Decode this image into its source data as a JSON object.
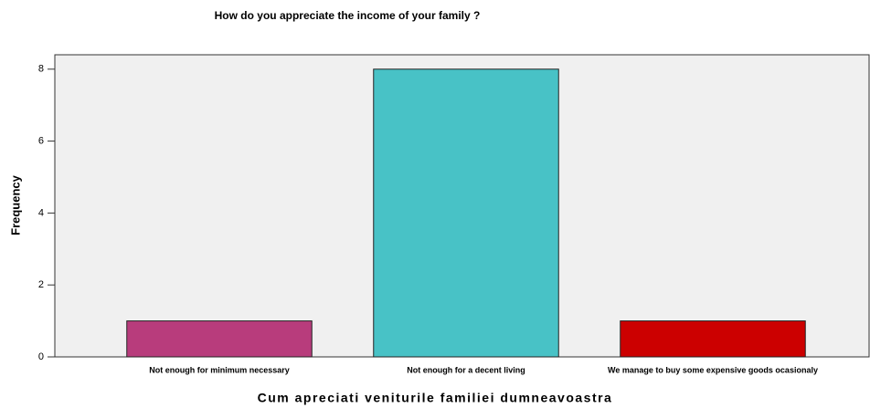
{
  "chart_data": {
    "type": "bar",
    "title": "How do you appreciate the income of your family ?",
    "x_label": "Cum apreciati veniturile familiei dumneavoastra",
    "y_label": "Frequency",
    "categories": [
      "Not enough for minimum necessary",
      "Not enough for a decent living",
      "We manage to buy some expensive goods ocasionaly"
    ],
    "values": [
      1,
      8,
      1
    ],
    "colors": [
      "#b83c7c",
      "#48c2c6",
      "#cc0000"
    ],
    "ylim": [
      0,
      8.4
    ],
    "yticks": [
      0,
      2,
      4,
      6,
      8
    ],
    "grid": false
  }
}
